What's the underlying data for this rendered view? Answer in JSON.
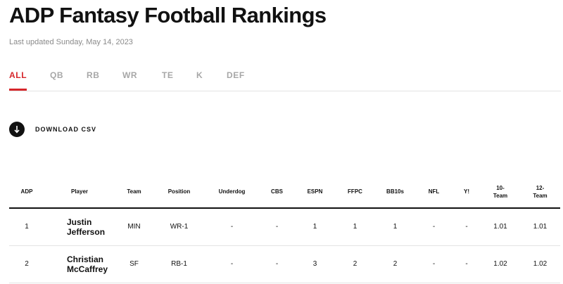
{
  "page": {
    "title": "ADP Fantasy Football Rankings",
    "last_updated": "Last updated Sunday, May 14, 2023"
  },
  "tabs": [
    {
      "label": "ALL",
      "active": true
    },
    {
      "label": "QB",
      "active": false
    },
    {
      "label": "RB",
      "active": false
    },
    {
      "label": "WR",
      "active": false
    },
    {
      "label": "TE",
      "active": false
    },
    {
      "label": "K",
      "active": false
    },
    {
      "label": "DEF",
      "active": false
    }
  ],
  "download": {
    "label": "DOWNLOAD CSV",
    "icon": "arrow-down-icon"
  },
  "table": {
    "headers": {
      "adp": "ADP",
      "player": "Player",
      "team": "Team",
      "position": "Position",
      "underdog": "Underdog",
      "cbs": "CBS",
      "espn": "ESPN",
      "ffpc": "FFPC",
      "bb10s": "BB10s",
      "nfl": "NFL",
      "yahoo": "Y!",
      "team10_line1": "10-",
      "team10_line2": "Team",
      "team12_line1": "12-",
      "team12_line2": "Team"
    },
    "rows": [
      {
        "adp": "1",
        "player_line1": "Justin",
        "player_line2": "Jefferson",
        "team": "MIN",
        "position": "WR-1",
        "underdog": "-",
        "cbs": "-",
        "espn": "1",
        "ffpc": "1",
        "bb10s": "1",
        "nfl": "-",
        "yahoo": "-",
        "team10": "1.01",
        "team12": "1.01"
      },
      {
        "adp": "2",
        "player_line1": "Christian",
        "player_line2": "McCaffrey",
        "team": "SF",
        "position": "RB-1",
        "underdog": "-",
        "cbs": "-",
        "espn": "3",
        "ffpc": "2",
        "bb10s": "2",
        "nfl": "-",
        "yahoo": "-",
        "team10": "1.02",
        "team12": "1.02"
      }
    ]
  },
  "colors": {
    "accent": "#d6262b",
    "text": "#111111",
    "muted": "#8a8a8a",
    "tab_inactive": "#a7a7a7"
  }
}
